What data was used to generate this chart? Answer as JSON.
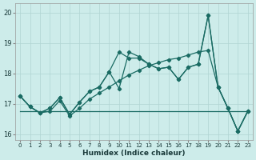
{
  "xlabel": "Humidex (Indice chaleur)",
  "bg_color": "#cdecea",
  "grid_color": "#b0d5d3",
  "line_color": "#1a6b63",
  "ylim": [
    15.8,
    20.3
  ],
  "xlim": [
    -0.5,
    23.5
  ],
  "x_ticks": [
    0,
    1,
    2,
    3,
    4,
    5,
    6,
    7,
    8,
    9,
    10,
    11,
    12,
    13,
    14,
    15,
    16,
    17,
    18,
    19,
    20,
    21,
    22,
    23
  ],
  "yticks": [
    16,
    17,
    18,
    19,
    20
  ],
  "series1": [
    17.25,
    16.9,
    16.7,
    16.85,
    17.2,
    16.65,
    17.05,
    17.4,
    17.55,
    18.05,
    18.7,
    18.5,
    18.5,
    18.3,
    18.15,
    18.2,
    17.8,
    18.2,
    18.3,
    19.9,
    17.55,
    16.85,
    16.1,
    16.75
  ],
  "series2": [
    17.25,
    16.9,
    16.7,
    16.85,
    17.2,
    16.65,
    17.05,
    17.4,
    17.55,
    18.05,
    17.5,
    18.7,
    18.55,
    18.3,
    18.15,
    18.2,
    17.8,
    18.2,
    18.3,
    19.9,
    17.55,
    16.85,
    16.1,
    16.75
  ],
  "series3_x": [
    0,
    1,
    2,
    3,
    4,
    5,
    6,
    7,
    8,
    9,
    10,
    11,
    12,
    13,
    14,
    15,
    16,
    17,
    18,
    19,
    20,
    21,
    22,
    23
  ],
  "series3_y": [
    17.25,
    16.9,
    16.7,
    16.75,
    17.1,
    16.6,
    16.85,
    17.15,
    17.35,
    17.55,
    17.75,
    17.95,
    18.1,
    18.25,
    18.35,
    18.45,
    18.5,
    18.6,
    18.7,
    18.75,
    17.55,
    16.85,
    16.1,
    16.75
  ],
  "series4_x": [
    0,
    1,
    2,
    3,
    4,
    5,
    6,
    7,
    8,
    9,
    10,
    11,
    12,
    13,
    14,
    15,
    16,
    17,
    18,
    19,
    20,
    21,
    22,
    23
  ],
  "series4_y": [
    16.75,
    16.75,
    16.75,
    16.75,
    16.75,
    16.75,
    16.75,
    16.75,
    16.75,
    16.75,
    16.75,
    16.75,
    16.75,
    16.75,
    16.75,
    16.75,
    16.75,
    16.75,
    16.75,
    16.75,
    16.75,
    16.75,
    16.75,
    16.75
  ]
}
